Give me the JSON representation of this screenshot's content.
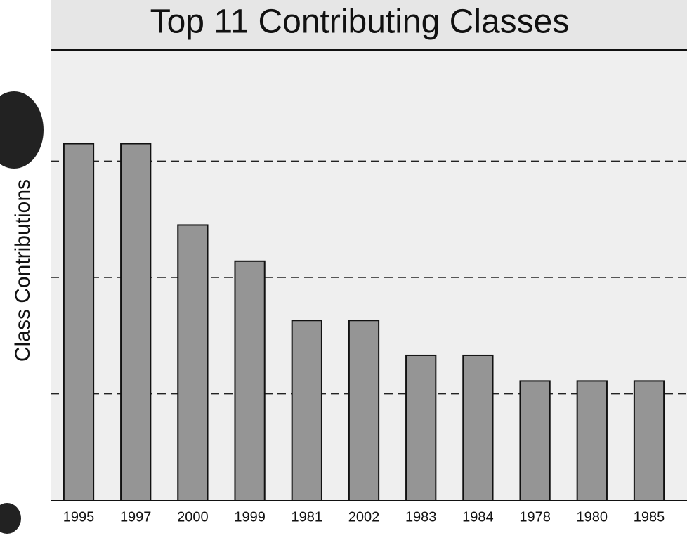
{
  "chart_data": {
    "type": "bar",
    "title": "Top 11 Contributing Classes",
    "y_label": "Class Contributions",
    "categories": [
      "1995",
      "1997",
      "2000",
      "1999",
      "1981",
      "2002",
      "1983",
      "1984",
      "1978",
      "1980",
      "1985"
    ],
    "values": [
      31.5,
      31.5,
      24.5,
      21.4,
      16.3,
      16.3,
      13.3,
      13.3,
      11.1,
      11.1,
      11.1
    ],
    "color": "#959595",
    "ylim": [
      0.8,
      39.5
    ],
    "yticks": [
      10,
      20,
      30
    ],
    "grid": true
  }
}
